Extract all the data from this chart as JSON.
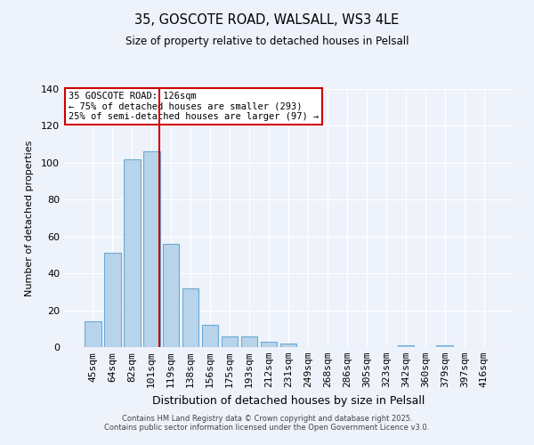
{
  "title": "35, GOSCOTE ROAD, WALSALL, WS3 4LE",
  "subtitle": "Size of property relative to detached houses in Pelsall",
  "xlabel": "Distribution of detached houses by size in Pelsall",
  "ylabel": "Number of detached properties",
  "bar_labels": [
    "45sqm",
    "64sqm",
    "82sqm",
    "101sqm",
    "119sqm",
    "138sqm",
    "156sqm",
    "175sqm",
    "193sqm",
    "212sqm",
    "231sqm",
    "249sqm",
    "268sqm",
    "286sqm",
    "305sqm",
    "323sqm",
    "342sqm",
    "360sqm",
    "379sqm",
    "397sqm",
    "416sqm"
  ],
  "bar_values": [
    14,
    51,
    102,
    106,
    56,
    32,
    12,
    6,
    6,
    3,
    2,
    0,
    0,
    0,
    0,
    0,
    1,
    0,
    1,
    0,
    0
  ],
  "bar_color": "#b8d4ea",
  "bar_edge_color": "#6aaad4",
  "vline_x": 4.5,
  "vline_color": "#cc0000",
  "annotation_title": "35 GOSCOTE ROAD: 126sqm",
  "annotation_line1": "← 75% of detached houses are smaller (293)",
  "annotation_line2": "25% of semi-detached houses are larger (97) →",
  "annotation_box_facecolor": "#ffffff",
  "annotation_box_edgecolor": "#cc0000",
  "ylim": [
    0,
    140
  ],
  "yticks": [
    0,
    20,
    40,
    60,
    80,
    100,
    120,
    140
  ],
  "footer1": "Contains HM Land Registry data © Crown copyright and database right 2025.",
  "footer2": "Contains public sector information licensed under the Open Government Licence v3.0.",
  "bg_color": "#eef2fb"
}
